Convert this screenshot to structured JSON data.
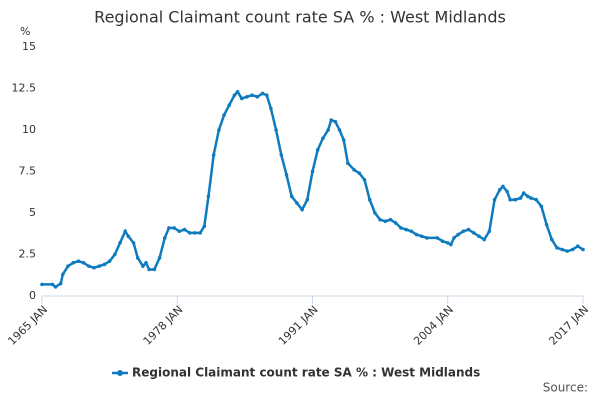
{
  "chart_data": {
    "type": "line",
    "title": "Regional Claimant count rate SA % : West Midlands",
    "y_unit": "%",
    "source": "Source:",
    "x": [
      1965.0,
      1966.0,
      1966.3,
      1966.8,
      1967.0,
      1967.5,
      1968.0,
      1968.5,
      1969.0,
      1969.5,
      1970.0,
      1970.5,
      1971.0,
      1971.5,
      1972.0,
      1972.5,
      1973.0,
      1973.3,
      1973.8,
      1974.2,
      1974.7,
      1975.0,
      1975.3,
      1975.8,
      1976.3,
      1976.8,
      1977.2,
      1977.7,
      1978.2,
      1978.7,
      1979.2,
      1979.7,
      1980.2,
      1980.6,
      1981.0,
      1981.5,
      1982.0,
      1982.5,
      1983.0,
      1983.5,
      1983.8,
      1984.2,
      1984.7,
      1985.2,
      1985.7,
      1986.2,
      1986.6,
      1987.0,
      1987.5,
      1988.0,
      1988.5,
      1989.0,
      1989.5,
      1990.0,
      1990.5,
      1991.0,
      1991.5,
      1992.0,
      1992.5,
      1992.8,
      1993.2,
      1993.6,
      1994.0,
      1994.4,
      1995.0,
      1995.5,
      1996.0,
      1996.5,
      1997.0,
      1997.5,
      1998.0,
      1998.5,
      1999.0,
      1999.5,
      2000.0,
      2000.5,
      2001.0,
      2001.5,
      2002.0,
      2003.0,
      2003.5,
      2004.0,
      2004.3,
      2004.6,
      2005.0,
      2005.5,
      2006.0,
      2006.5,
      2007.0,
      2007.5,
      2008.0,
      2008.5,
      2009.0,
      2009.3,
      2009.7,
      2010.0,
      2010.5,
      2011.0,
      2011.3,
      2011.7,
      2012.0,
      2012.5,
      2013.0,
      2013.5,
      2014.0,
      2014.5,
      2015.0,
      2015.5,
      2016.0,
      2016.5,
      2017.0
    ],
    "series": [
      {
        "name": "Regional Claimant count rate SA % : West Midlands",
        "color": "#0f7bbf",
        "values": [
          0.7,
          0.7,
          0.55,
          0.75,
          1.3,
          1.8,
          2.0,
          2.1,
          2.0,
          1.8,
          1.7,
          1.8,
          1.9,
          2.1,
          2.5,
          3.2,
          3.9,
          3.6,
          3.2,
          2.3,
          1.8,
          2.0,
          1.6,
          1.6,
          2.3,
          3.5,
          4.1,
          4.1,
          3.9,
          4.0,
          3.8,
          3.8,
          3.8,
          4.2,
          6.0,
          8.5,
          10.0,
          10.9,
          11.5,
          12.1,
          12.3,
          11.9,
          12.0,
          12.1,
          12.0,
          12.2,
          12.1,
          11.3,
          10.0,
          8.5,
          7.3,
          6.0,
          5.6,
          5.2,
          5.8,
          7.5,
          8.8,
          9.5,
          10.0,
          10.6,
          10.5,
          10.0,
          9.4,
          8.0,
          7.6,
          7.4,
          7.0,
          5.8,
          5.0,
          4.6,
          4.5,
          4.6,
          4.4,
          4.1,
          4.0,
          3.9,
          3.7,
          3.6,
          3.5,
          3.5,
          3.3,
          3.2,
          3.1,
          3.5,
          3.7,
          3.9,
          4.0,
          3.8,
          3.6,
          3.4,
          3.9,
          5.8,
          6.4,
          6.6,
          6.3,
          5.8,
          5.8,
          5.9,
          6.2,
          6.0,
          5.9,
          5.8,
          5.4,
          4.3,
          3.4,
          2.9,
          2.8,
          2.7,
          2.8,
          3.0,
          2.8
        ]
      }
    ],
    "xlim": [
      1965,
      2017
    ],
    "xticks": [
      {
        "value": 1965,
        "label": "1965 JAN"
      },
      {
        "value": 1978,
        "label": "1978 JAN"
      },
      {
        "value": 1991,
        "label": "1991 JAN"
      },
      {
        "value": 2004,
        "label": "2004 JAN"
      },
      {
        "value": 2017,
        "label": "2017 JAN"
      }
    ],
    "ylim": [
      0,
      15
    ],
    "yticks": [
      0,
      2.5,
      5,
      7.5,
      10,
      12.5,
      15
    ],
    "grid": false,
    "legend": "bottom"
  }
}
